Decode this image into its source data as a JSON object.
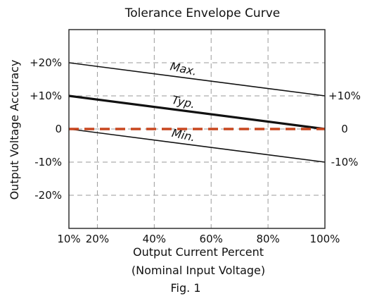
{
  "chart_data": {
    "type": "line",
    "title": "Tolerance Envelope Curve",
    "xlabel": "Output Current Percent",
    "xlabel_sub": "(Nominal Input Voltage)",
    "ylabel": "Output Voltage Accuracy",
    "caption": "Fig. 1",
    "xlim": [
      10,
      100
    ],
    "ylim": [
      -30,
      30
    ],
    "grid": true,
    "x_ticks": [
      {
        "value": 10,
        "label": "10%"
      },
      {
        "value": 20,
        "label": "20%"
      },
      {
        "value": 40,
        "label": "40%"
      },
      {
        "value": 60,
        "label": "60%"
      },
      {
        "value": 80,
        "label": "80%"
      },
      {
        "value": 100,
        "label": "100%"
      }
    ],
    "y_ticks_left": [
      {
        "value": 20,
        "label": "+20%"
      },
      {
        "value": 10,
        "label": "+10%"
      },
      {
        "value": 0,
        "label": "0"
      },
      {
        "value": -10,
        "label": "-10%"
      },
      {
        "value": -20,
        "label": "-20%"
      }
    ],
    "y_ticks_right": [
      {
        "value": 10,
        "label": "+10%"
      },
      {
        "value": 0,
        "label": "0"
      },
      {
        "value": -10,
        "label": "-10%"
      }
    ],
    "series": [
      {
        "name": "Max.",
        "x": [
          10,
          100
        ],
        "y": [
          20,
          10
        ],
        "color": "#111111",
        "style": "solid",
        "label_at": [
          50,
          17
        ]
      },
      {
        "name": "Typ.",
        "x": [
          10,
          100
        ],
        "y": [
          10,
          0
        ],
        "color": "#111111",
        "style": "solid-bold",
        "label_at": [
          50,
          7
        ]
      },
      {
        "name": "Min.",
        "x": [
          10,
          100
        ],
        "y": [
          0,
          -10
        ],
        "color": "#111111",
        "style": "solid",
        "label_at": [
          50,
          -3
        ]
      },
      {
        "name": "",
        "x": [
          10,
          100
        ],
        "y": [
          0,
          0
        ],
        "color": "#c8461e",
        "style": "dashed"
      }
    ]
  }
}
